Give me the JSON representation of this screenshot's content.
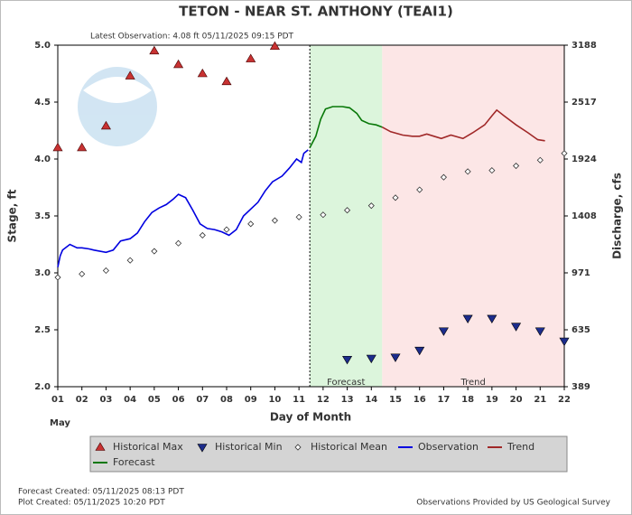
{
  "chart_data": {
    "type": "line",
    "title": "TETON - NEAR ST. ANTHONY  (TEAI1)",
    "subtitle": "Latest Observation: 4.08 ft 05/11/2025 09:15 PDT",
    "y_label": "Stage, ft",
    "y2_label": "Discharge, cfs",
    "x_label": "Day of Month",
    "x_sublabel": "May",
    "xlim": [
      1,
      22
    ],
    "xticks": [
      {
        "value": 1,
        "label": "01"
      },
      {
        "value": 2,
        "label": "02"
      },
      {
        "value": 3,
        "label": "03"
      },
      {
        "value": 4,
        "label": "04"
      },
      {
        "value": 5,
        "label": "05"
      },
      {
        "value": 6,
        "label": "06"
      },
      {
        "value": 7,
        "label": "07"
      },
      {
        "value": 8,
        "label": "08"
      },
      {
        "value": 9,
        "label": "09"
      },
      {
        "value": 10,
        "label": "10"
      },
      {
        "value": 11,
        "label": "11"
      },
      {
        "value": 12,
        "label": "12"
      },
      {
        "value": 13,
        "label": "13"
      },
      {
        "value": 14,
        "label": "14"
      },
      {
        "value": 15,
        "label": "15"
      },
      {
        "value": 16,
        "label": "16"
      },
      {
        "value": 17,
        "label": "17"
      },
      {
        "value": 18,
        "label": "18"
      },
      {
        "value": 19,
        "label": "19"
      },
      {
        "value": 20,
        "label": "20"
      },
      {
        "value": 21,
        "label": "21"
      },
      {
        "value": 22,
        "label": "22"
      }
    ],
    "ylim": [
      2,
      5
    ],
    "yticks": [
      {
        "value": 2,
        "label": "2.0"
      },
      {
        "value": 2.5,
        "label": "2.5"
      },
      {
        "value": 3,
        "label": "3.0"
      },
      {
        "value": 3.5,
        "label": "3.5"
      },
      {
        "value": 4,
        "label": "4.0"
      },
      {
        "value": 4.5,
        "label": "4.5"
      },
      {
        "value": 5,
        "label": "5.0"
      }
    ],
    "y2lim": [
      389,
      3188
    ],
    "y2ticks": [
      389,
      635,
      971,
      1408,
      1924,
      2517,
      3188
    ],
    "regions": [
      {
        "label": "Forecast",
        "xlim": [
          11.45,
          14.45
        ],
        "color": "#dcf5dc"
      },
      {
        "label": "Trend",
        "xlim": [
          14.45,
          22
        ],
        "color": "#fce6e6"
      }
    ],
    "series": [
      {
        "name": "Historical Max",
        "color": "#c83232",
        "marker": "triangle-up",
        "x": [
          1,
          2,
          3,
          4,
          5,
          6,
          7,
          8,
          9,
          10
        ],
        "values": [
          4.1,
          4.1,
          4.29,
          4.73,
          4.95,
          4.83,
          4.75,
          4.68,
          4.88,
          4.99
        ]
      },
      {
        "name": "Historical Min",
        "color": "#1c2c8c",
        "marker": "triangle-down",
        "x": [
          13,
          14,
          15,
          16,
          17,
          18,
          19,
          20,
          21,
          22
        ],
        "values": [
          2.24,
          2.25,
          2.26,
          2.32,
          2.49,
          2.6,
          2.6,
          2.53,
          2.49,
          2.4
        ]
      },
      {
        "name": "Historical Mean",
        "color": "#333333",
        "marker": "diamond",
        "x": [
          1,
          2,
          3,
          4,
          5,
          6,
          7,
          8,
          9,
          10,
          11,
          12,
          13,
          14,
          15,
          16,
          17,
          18,
          19,
          20,
          21,
          22
        ],
        "values": [
          2.96,
          2.99,
          3.02,
          3.11,
          3.19,
          3.26,
          3.33,
          3.38,
          3.43,
          3.46,
          3.49,
          3.51,
          3.55,
          3.59,
          3.66,
          3.73,
          3.84,
          3.89,
          3.9,
          3.94,
          3.99,
          4.05
        ]
      },
      {
        "name": "Observation",
        "color": "#0000e0",
        "marker": null,
        "x": [
          1,
          1.1,
          1.2,
          1.5,
          1.8,
          2,
          2.3,
          2.5,
          3,
          3.3,
          3.6,
          4,
          4.3,
          4.6,
          4.9,
          5.2,
          5.5,
          5.8,
          6,
          6.3,
          6.6,
          6.9,
          7.2,
          7.5,
          7.8,
          8.1,
          8.4,
          8.7,
          9,
          9.3,
          9.6,
          9.9,
          10.3,
          10.6,
          10.9,
          11.1,
          11.2,
          11.38
        ],
        "values": [
          3.05,
          3.15,
          3.2,
          3.25,
          3.22,
          3.22,
          3.21,
          3.2,
          3.18,
          3.2,
          3.28,
          3.3,
          3.35,
          3.45,
          3.53,
          3.57,
          3.6,
          3.65,
          3.69,
          3.66,
          3.55,
          3.43,
          3.39,
          3.38,
          3.36,
          3.33,
          3.38,
          3.5,
          3.56,
          3.62,
          3.72,
          3.8,
          3.85,
          3.92,
          4.0,
          3.97,
          4.05,
          4.08
        ]
      },
      {
        "name": "Trend",
        "color": "#a02828",
        "marker": null,
        "x": [
          14.45,
          14.8,
          15.3,
          15.7,
          16,
          16.3,
          16.6,
          16.9,
          17.3,
          17.8,
          18.2,
          18.7,
          19,
          19.2,
          19.5,
          20,
          20.5,
          20.9,
          21.2
        ],
        "values": [
          4.28,
          4.24,
          4.21,
          4.2,
          4.2,
          4.22,
          4.2,
          4.18,
          4.21,
          4.18,
          4.23,
          4.3,
          4.38,
          4.43,
          4.38,
          4.3,
          4.23,
          4.17,
          4.16
        ]
      },
      {
        "name": "Forecast",
        "color": "#087808",
        "marker": null,
        "x": [
          11.45,
          11.7,
          11.9,
          12.1,
          12.4,
          12.8,
          13.1,
          13.4,
          13.6,
          13.9,
          14.2,
          14.45
        ],
        "values": [
          4.1,
          4.2,
          4.35,
          4.44,
          4.46,
          4.46,
          4.45,
          4.4,
          4.34,
          4.31,
          4.3,
          4.28
        ]
      }
    ],
    "footer_left": [
      "Forecast Created: 05/11/2025 08:13 PDT",
      "Plot Created: 05/11/2025 10:20 PDT"
    ],
    "footer_right": "Observations Provided by US Geological Survey"
  }
}
